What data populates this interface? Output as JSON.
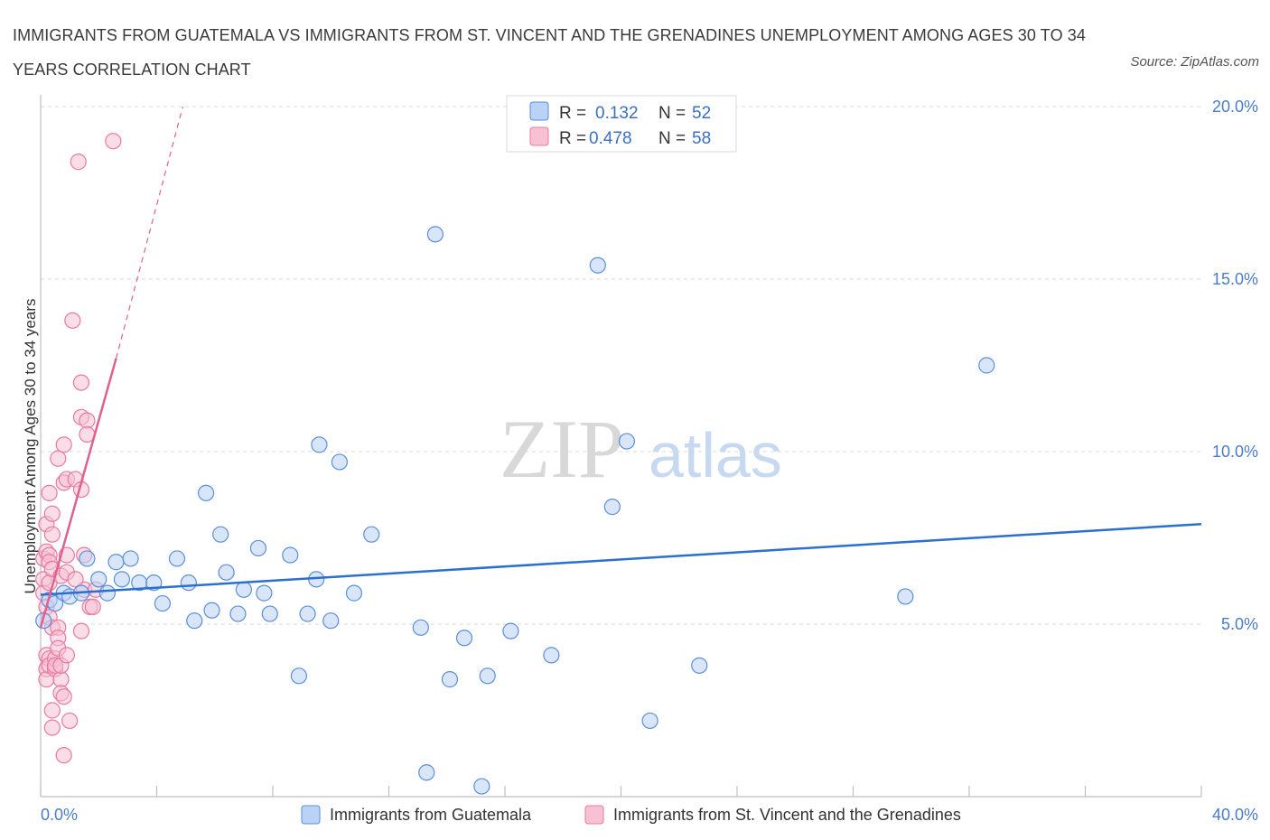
{
  "title": "IMMIGRANTS FROM GUATEMALA VS IMMIGRANTS FROM ST. VINCENT AND THE GRENADINES UNEMPLOYMENT AMONG AGES 30 TO 34 YEARS CORRELATION CHART",
  "source": "Source: ZipAtlas.com",
  "watermark": {
    "zip": "ZIP",
    "atlas": "atlas"
  },
  "colors": {
    "blue": "#5b8fd9",
    "blue_fill": "#b9d2f5",
    "blue_line": "#2b6fcf",
    "pink": "#e87aa0",
    "pink_fill": "#f7c1d3",
    "pink_line": "#e0608e",
    "grid": "#d9d9d9",
    "tick_text": "#4a7cc9"
  },
  "legend": [
    {
      "r_label": "R =",
      "r_value": "0.132",
      "n_label": "N =",
      "n_value": "52"
    },
    {
      "r_label": "R =",
      "r_value": "0.478",
      "n_label": "N =",
      "n_value": "58"
    }
  ],
  "chart_data": {
    "type": "scatter",
    "title": "IMMIGRANTS FROM GUATEMALA VS IMMIGRANTS FROM ST. VINCENT AND THE GRENADINES UNEMPLOYMENT AMONG AGES 30 TO 34 YEARS CORRELATION CHART",
    "xlabel": "",
    "ylabel": "Unemployment Among Ages 30 to 34 years",
    "xlim": [
      0,
      40
    ],
    "ylim": [
      0,
      20
    ],
    "x_tick_labels": [
      "0.0%",
      "40.0%"
    ],
    "y_tick_labels": [
      "5.0%",
      "10.0%",
      "15.0%",
      "20.0%"
    ],
    "y_ticks": [
      5,
      10,
      15,
      20
    ],
    "grid": true,
    "legend_position": "top-center",
    "series": [
      {
        "name": "Immigrants from Guatemala",
        "color": "#5b8fd9",
        "points": [
          [
            0.1,
            5.1
          ],
          [
            0.3,
            5.7
          ],
          [
            0.5,
            5.6
          ],
          [
            0.8,
            5.9
          ],
          [
            1.0,
            5.8
          ],
          [
            1.4,
            5.9
          ],
          [
            1.6,
            6.9
          ],
          [
            2.0,
            6.3
          ],
          [
            2.3,
            5.9
          ],
          [
            2.6,
            6.8
          ],
          [
            2.8,
            6.3
          ],
          [
            3.1,
            6.9
          ],
          [
            3.4,
            6.2
          ],
          [
            3.9,
            6.2
          ],
          [
            4.2,
            5.6
          ],
          [
            4.7,
            6.9
          ],
          [
            5.1,
            6.2
          ],
          [
            5.3,
            5.1
          ],
          [
            5.7,
            8.8
          ],
          [
            5.9,
            5.4
          ],
          [
            6.2,
            7.6
          ],
          [
            6.4,
            6.5
          ],
          [
            6.8,
            5.3
          ],
          [
            7.0,
            6.0
          ],
          [
            7.5,
            7.2
          ],
          [
            7.7,
            5.9
          ],
          [
            7.9,
            5.3
          ],
          [
            8.6,
            7.0
          ],
          [
            8.9,
            3.5
          ],
          [
            9.2,
            5.3
          ],
          [
            9.5,
            6.3
          ],
          [
            9.6,
            10.2
          ],
          [
            10.0,
            5.1
          ],
          [
            10.3,
            9.7
          ],
          [
            10.8,
            5.9
          ],
          [
            11.4,
            7.6
          ],
          [
            13.1,
            4.9
          ],
          [
            13.3,
            0.7
          ],
          [
            13.6,
            16.3
          ],
          [
            14.1,
            3.4
          ],
          [
            14.6,
            4.6
          ],
          [
            15.2,
            0.3
          ],
          [
            15.4,
            3.5
          ],
          [
            16.2,
            4.8
          ],
          [
            17.6,
            4.1
          ],
          [
            19.2,
            15.4
          ],
          [
            19.7,
            8.4
          ],
          [
            20.2,
            10.3
          ],
          [
            21.0,
            2.2
          ],
          [
            22.7,
            3.8
          ],
          [
            29.8,
            5.8
          ],
          [
            32.6,
            12.5
          ]
        ],
        "trend": {
          "x": [
            0,
            40
          ],
          "y": [
            5.85,
            7.9
          ]
        }
      },
      {
        "name": "Immigrants from St. Vincent and the Grenadines",
        "color": "#e87aa0",
        "points": [
          [
            0.1,
            6.9
          ],
          [
            0.1,
            6.3
          ],
          [
            0.1,
            5.9
          ],
          [
            0.2,
            7.9
          ],
          [
            0.2,
            7.1
          ],
          [
            0.2,
            5.5
          ],
          [
            0.2,
            4.1
          ],
          [
            0.2,
            3.7
          ],
          [
            0.2,
            3.4
          ],
          [
            0.3,
            8.8
          ],
          [
            0.3,
            7.0
          ],
          [
            0.3,
            6.8
          ],
          [
            0.3,
            6.2
          ],
          [
            0.3,
            5.2
          ],
          [
            0.3,
            4.0
          ],
          [
            0.3,
            3.8
          ],
          [
            0.4,
            8.2
          ],
          [
            0.4,
            7.6
          ],
          [
            0.4,
            6.6
          ],
          [
            0.4,
            4.9
          ],
          [
            0.4,
            2.5
          ],
          [
            0.4,
            2.0
          ],
          [
            0.5,
            3.7
          ],
          [
            0.5,
            4.0
          ],
          [
            0.5,
            3.8
          ],
          [
            0.6,
            9.8
          ],
          [
            0.6,
            4.9
          ],
          [
            0.6,
            4.6
          ],
          [
            0.6,
            4.3
          ],
          [
            0.7,
            6.4
          ],
          [
            0.7,
            3.4
          ],
          [
            0.7,
            3.8
          ],
          [
            0.7,
            3.0
          ],
          [
            0.8,
            10.2
          ],
          [
            0.8,
            9.1
          ],
          [
            0.8,
            2.9
          ],
          [
            0.8,
            1.2
          ],
          [
            0.9,
            9.2
          ],
          [
            0.9,
            7.0
          ],
          [
            0.9,
            6.5
          ],
          [
            0.9,
            4.1
          ],
          [
            1.0,
            2.2
          ],
          [
            1.1,
            13.8
          ],
          [
            1.2,
            9.2
          ],
          [
            1.3,
            18.4
          ],
          [
            1.4,
            4.8
          ],
          [
            1.4,
            8.9
          ],
          [
            1.4,
            12.0
          ],
          [
            1.4,
            11.0
          ],
          [
            1.5,
            7.0
          ],
          [
            1.5,
            6.0
          ],
          [
            1.6,
            10.9
          ],
          [
            1.6,
            10.5
          ],
          [
            1.7,
            5.5
          ],
          [
            1.8,
            5.5
          ],
          [
            1.9,
            6.0
          ],
          [
            2.5,
            19.0
          ],
          [
            1.2,
            6.3
          ]
        ],
        "trend": {
          "x": [
            0.0,
            2.6
          ],
          "y": [
            4.9,
            12.7
          ]
        },
        "trend_dashed": {
          "x": [
            2.6,
            4.9
          ],
          "y": [
            12.7,
            20.0
          ]
        }
      }
    ]
  },
  "bottom_legend": [
    "Immigrants from Guatemala",
    "Immigrants from St. Vincent and the Grenadines"
  ]
}
